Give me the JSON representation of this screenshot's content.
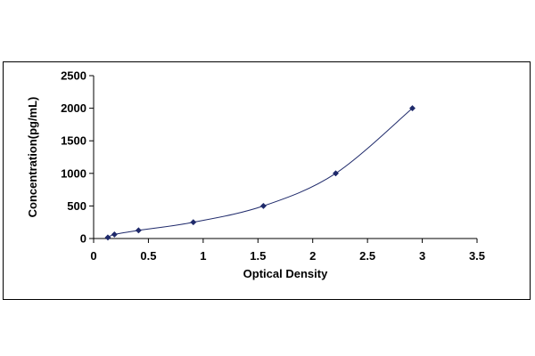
{
  "chart_data": {
    "type": "scatter",
    "title": "",
    "xlabel": "Optical Density",
    "ylabel": "Concentration(pg/mL)",
    "xlim": [
      0,
      3.5
    ],
    "ylim": [
      0,
      2500
    ],
    "x_ticks": [
      0,
      0.5,
      1,
      1.5,
      2,
      2.5,
      3,
      3.5
    ],
    "x_tick_labels": [
      "0",
      "0.5",
      "1",
      "1.5",
      "2",
      "2.5",
      "3",
      "3.5"
    ],
    "y_ticks": [
      0,
      500,
      1000,
      1500,
      2000,
      2500
    ],
    "y_tick_labels": [
      "0",
      "500",
      "1000",
      "1500",
      "2000",
      "2500"
    ],
    "grid": false,
    "legend": "none",
    "series": [
      {
        "points": [
          {
            "x": 0.13,
            "y": 15.6
          },
          {
            "x": 0.19,
            "y": 62.5
          },
          {
            "x": 0.41,
            "y": 125
          },
          {
            "x": 0.91,
            "y": 250
          },
          {
            "x": 1.55,
            "y": 500
          },
          {
            "x": 2.21,
            "y": 1000
          },
          {
            "x": 2.91,
            "y": 2000
          }
        ],
        "marker": "diamond",
        "color": "#1f2a6b",
        "fit_curve": true,
        "curve_color": "#1f2a6b"
      }
    ]
  }
}
